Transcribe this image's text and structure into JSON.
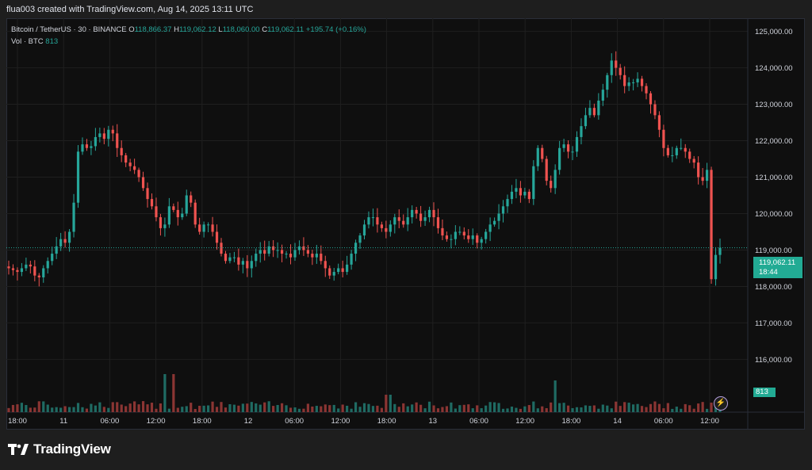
{
  "header": {
    "caption": "flua003 created with TradingView.com, Aug 14, 2025 13:11 UTC"
  },
  "legend": {
    "symbol": "Bitcoin / TetherUS · 30 · BINANCE",
    "o_label": "O",
    "o": "118,866.37",
    "h_label": "H",
    "h": "119,062.12",
    "l_label": "L",
    "l": "118,060.00",
    "c_label": "C",
    "c": "119,062.11",
    "change": "+195.74 (+0.16%)",
    "vol_label": "Vol · BTC",
    "vol": "813"
  },
  "price_tag": {
    "price": "119,062.11",
    "countdown": "18:44"
  },
  "volume_tag": "813",
  "brand": {
    "name": "TradingView"
  },
  "colors": {
    "up": "#26a69a",
    "down": "#ef5350",
    "background": "#0f0f0f",
    "grid": "#1f1f1f"
  },
  "icons": {
    "lightning": "lightning-icon",
    "logo": "tradingview-logo-icon"
  },
  "chart_data": {
    "type": "candlestick",
    "symbol": "Bitcoin / TetherUS",
    "interval": "30",
    "exchange": "BINANCE",
    "y_ticks": [
      "125,000.00",
      "124,000.00",
      "123,000.00",
      "122,000.00",
      "121,000.00",
      "120,000.00",
      "119,000.00",
      "118,000.00",
      "117,000.00",
      "116,000.00"
    ],
    "ylim": [
      115400,
      125100
    ],
    "x_ticks": [
      "18:00",
      "11",
      "06:00",
      "12:00",
      "18:00",
      "12",
      "06:00",
      "12:00",
      "18:00",
      "13",
      "06:00",
      "12:00",
      "18:00",
      "14",
      "06:00",
      "12:00"
    ],
    "last_price": 119062.11,
    "close_series": [
      118500,
      118450,
      118400,
      118500,
      118600,
      118550,
      118300,
      118250,
      118500,
      118700,
      118900,
      119100,
      119300,
      119200,
      119500,
      120300,
      121700,
      121900,
      121800,
      121850,
      122100,
      122200,
      122050,
      122300,
      122200,
      121800,
      121600,
      121400,
      121300,
      121200,
      121000,
      120700,
      120400,
      120200,
      119900,
      119600,
      119700,
      120200,
      120100,
      119900,
      120000,
      120500,
      120300,
      119700,
      119500,
      119700,
      119700,
      119500,
      119200,
      118900,
      118700,
      118800,
      118800,
      118600,
      118700,
      118500,
      118700,
      118900,
      119000,
      118900,
      119100,
      119000,
      119000,
      118900,
      118900,
      118800,
      119000,
      119100,
      119000,
      118900,
      118800,
      118900,
      118700,
      118500,
      118300,
      118400,
      118500,
      118400,
      118600,
      118900,
      119200,
      119400,
      119700,
      119900,
      119900,
      119700,
      119600,
      119500,
      119700,
      119900,
      119800,
      119700,
      119900,
      120100,
      120000,
      119800,
      119900,
      120100,
      119900,
      119600,
      119400,
      119300,
      119300,
      119500,
      119500,
      119400,
      119300,
      119400,
      119200,
      119300,
      119500,
      119700,
      119800,
      120000,
      120200,
      120400,
      120600,
      120700,
      120500,
      120600,
      120400,
      121300,
      121800,
      121500,
      120900,
      120700,
      121200,
      121800,
      121900,
      121700,
      121700,
      122100,
      122400,
      122700,
      122900,
      122700,
      123100,
      123400,
      123800,
      124200,
      124000,
      123800,
      123500,
      123600,
      123600,
      123700,
      123500,
      123300,
      123000,
      122700,
      122300,
      121800,
      121600,
      121600,
      121800,
      121800,
      121700,
      121500,
      121400,
      121000,
      120900,
      121200,
      118200,
      118866,
      119062
    ],
    "volume_last": 813
  }
}
